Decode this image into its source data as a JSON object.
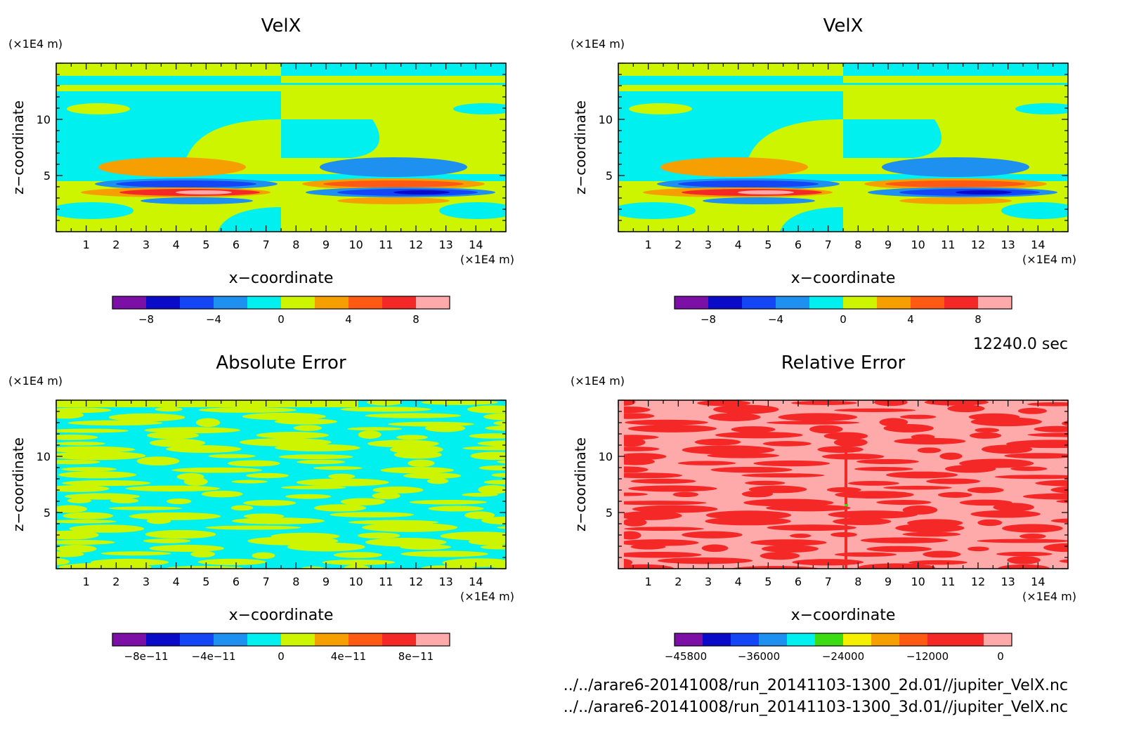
{
  "colors": {
    "purple": "#7b0fa6",
    "navy": "#0a0ac8",
    "blue": "#1446f5",
    "skyblue": "#1e90f0",
    "cyan": "#00f0f0",
    "yellowgreen": "#cdf500",
    "orange": "#f5a000",
    "redorange": "#ff5a14",
    "red": "#f52828",
    "pink": "#ffaaaa",
    "green": "#3cdc14",
    "yellow": "#f5f000"
  },
  "time_label": "12240.0 sec",
  "file_paths": [
    "../../arare6-20141008/run_20141103-1300_2d.01//jupiter_VelX.nc",
    "../../arare6-20141008/run_20141103-1300_3d.01//jupiter_VelX.nc"
  ],
  "chart_data": [
    {
      "type": "heatmap",
      "title": "VelX",
      "xlabel": "x−coordinate",
      "ylabel": "z−coordinate",
      "x_unit": "(×1E4 m)",
      "y_unit": "(×1E4 m)",
      "xlim": [
        0,
        15
      ],
      "ylim": [
        0,
        15
      ],
      "x_ticks": [
        "1",
        "2",
        "3",
        "4",
        "5",
        "6",
        "7",
        "8",
        "9",
        "10",
        "11",
        "12",
        "13",
        "14"
      ],
      "y_ticks": [
        "5",
        "10"
      ],
      "colorbar": {
        "colors": [
          "purple",
          "navy",
          "blue",
          "skyblue",
          "cyan",
          "yellowgreen",
          "orange",
          "redorange",
          "red",
          "pink"
        ],
        "tick_labels": [
          "−8",
          "−4",
          "0",
          "4",
          "8"
        ]
      }
    },
    {
      "type": "heatmap",
      "title": "VelX",
      "xlabel": "x−coordinate",
      "ylabel": "z−coordinate",
      "x_unit": "(×1E4 m)",
      "y_unit": "(×1E4 m)",
      "xlim": [
        0,
        15
      ],
      "ylim": [
        0,
        15
      ],
      "x_ticks": [
        "1",
        "2",
        "3",
        "4",
        "5",
        "6",
        "7",
        "8",
        "9",
        "10",
        "11",
        "12",
        "13",
        "14"
      ],
      "y_ticks": [
        "5",
        "10"
      ],
      "colorbar": {
        "colors": [
          "purple",
          "navy",
          "blue",
          "skyblue",
          "cyan",
          "yellowgreen",
          "orange",
          "redorange",
          "red",
          "pink"
        ],
        "tick_labels": [
          "−8",
          "−4",
          "0",
          "4",
          "8"
        ]
      }
    },
    {
      "type": "heatmap",
      "title": "Absolute Error",
      "xlabel": "x−coordinate",
      "ylabel": "z−coordinate",
      "x_unit": "(×1E4 m)",
      "y_unit": "(×1E4 m)",
      "xlim": [
        0,
        15
      ],
      "ylim": [
        0,
        15
      ],
      "x_ticks": [
        "1",
        "2",
        "3",
        "4",
        "5",
        "6",
        "7",
        "8",
        "9",
        "10",
        "11",
        "12",
        "13",
        "14"
      ],
      "y_ticks": [
        "5",
        "10"
      ],
      "colorbar": {
        "colors": [
          "purple",
          "navy",
          "blue",
          "skyblue",
          "cyan",
          "yellowgreen",
          "orange",
          "redorange",
          "red",
          "pink"
        ],
        "tick_labels": [
          "−8e−11",
          "−4e−11",
          "0",
          "4e−11",
          "8e−11"
        ]
      }
    },
    {
      "type": "heatmap",
      "title": "Relative Error",
      "xlabel": "x−coordinate",
      "ylabel": "z−coordinate",
      "x_unit": "(×1E4 m)",
      "y_unit": "(×1E4 m)",
      "xlim": [
        0,
        15
      ],
      "ylim": [
        0,
        15
      ],
      "x_ticks": [
        "1",
        "2",
        "3",
        "4",
        "5",
        "6",
        "7",
        "8",
        "9",
        "10",
        "11",
        "12",
        "13",
        "14"
      ],
      "y_ticks": [
        "5",
        "10"
      ],
      "colorbar": {
        "colors": [
          "purple",
          "navy",
          "blue",
          "skyblue",
          "cyan",
          "green",
          "yellow",
          "orange",
          "redorange",
          "red",
          "red",
          "pink"
        ],
        "tick_labels": [
          "−45800",
          "−36000",
          "−24000",
          "−12000",
          "0"
        ]
      }
    }
  ]
}
